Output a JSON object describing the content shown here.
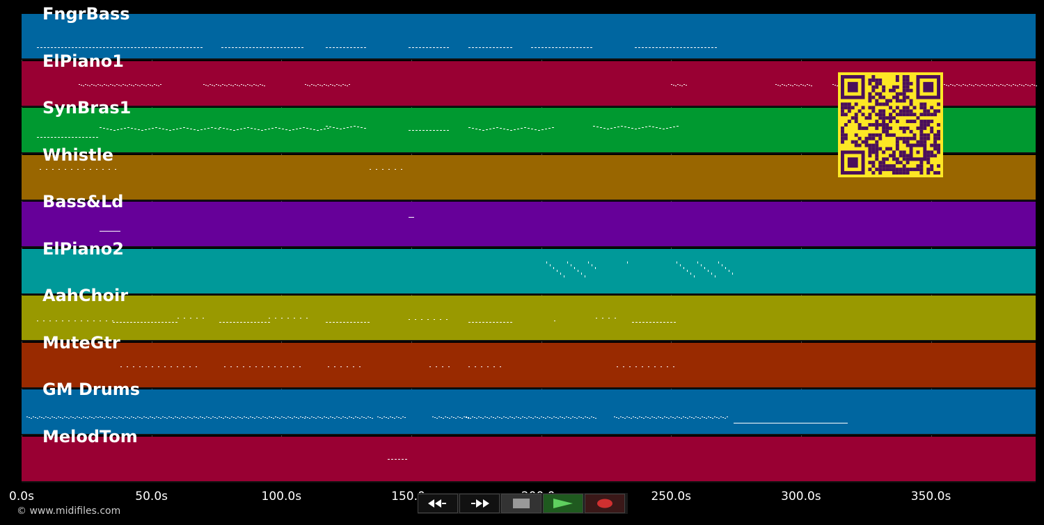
{
  "tracks": [
    {
      "name": "FngrBass",
      "color": "#0066a0"
    },
    {
      "name": "ElPiano1",
      "color": "#990033"
    },
    {
      "name": "SynBras1",
      "color": "#009930"
    },
    {
      "name": "Whistle",
      "color": "#996600"
    },
    {
      "name": "Bass&Ld",
      "color": "#660099"
    },
    {
      "name": "ElPiano2",
      "color": "#009999"
    },
    {
      "name": "AahChoir",
      "color": "#999900"
    },
    {
      "name": "MuteGtr",
      "color": "#992a00"
    },
    {
      "name": "GM Drums",
      "color": "#0066a0"
    },
    {
      "name": "MelodTom",
      "color": "#990033"
    }
  ],
  "axis": {
    "ticks": [
      "0.0s",
      "50.0s",
      "100.0s",
      "150.0s",
      "200.0s",
      "250.0s",
      "300.0s",
      "350.0s"
    ],
    "tick_seconds": [
      0,
      50,
      100,
      150,
      200,
      250,
      300,
      350
    ]
  },
  "transport": {
    "buttons": [
      {
        "name": "rewind-button",
        "icon": "rewind-icon"
      },
      {
        "name": "fast-forward-button",
        "icon": "fast-forward-icon"
      },
      {
        "name": "stop-button",
        "icon": "stop-icon"
      },
      {
        "name": "play-button",
        "icon": "play-icon"
      },
      {
        "name": "record-button",
        "icon": "record-icon"
      }
    ]
  },
  "copyright": "© www.midifiles.com",
  "qr_code": {
    "icon": "qr-code-icon",
    "fg": "#4a0f5c",
    "bg": "#fde725"
  }
}
